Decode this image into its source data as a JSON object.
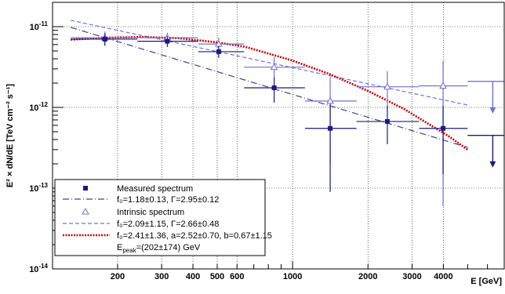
{
  "chart_data": {
    "type": "scatter",
    "xscale": "log",
    "yscale": "log",
    "xlim": [
      110,
      7000
    ],
    "ylim": [
      1e-14,
      2e-11
    ],
    "grid": true,
    "xlabel": "E [GeV]",
    "ylabel": "E² × dN/dE [TeV cm⁻² s⁻¹]",
    "legend_position": "bottom-left",
    "x_ticks": [
      {
        "value": 200,
        "label": "200"
      },
      {
        "value": 300,
        "label": "300"
      },
      {
        "value": 400,
        "label": "400"
      },
      {
        "value": 500,
        "label": "500"
      },
      {
        "value": 600,
        "label": "600"
      },
      {
        "value": 1000,
        "label": "1000"
      },
      {
        "value": 2000,
        "label": "2000"
      },
      {
        "value": 3000,
        "label": "3000"
      },
      {
        "value": 4000,
        "label": "4000"
      }
    ],
    "y_ticks": [
      {
        "value": 1e-14,
        "base": "10",
        "exp": "-14"
      },
      {
        "value": 1e-13,
        "base": "10",
        "exp": "-13"
      },
      {
        "value": 1e-12,
        "base": "10",
        "exp": "-12"
      },
      {
        "value": 1e-11,
        "base": "10",
        "exp": "-11"
      }
    ],
    "colors": {
      "measured": "#1a1a80",
      "intrinsic": "#7070d8",
      "fit_measured": "#404090",
      "fit_intrinsic": "#7070e0",
      "fit_logparabola": "#cc0000"
    },
    "measured": [
      {
        "x": 178,
        "y": 7e-12,
        "xerr": [
          130,
          240
        ],
        "yerr": [
          5.8e-12,
          8.3e-12
        ]
      },
      {
        "x": 316,
        "y": 6.6e-12,
        "xerr": [
          240,
          420
        ],
        "yerr": [
          5.6e-12,
          7.6e-12
        ]
      },
      {
        "x": 507,
        "y": 4.9e-12,
        "xerr": [
          420,
          640
        ],
        "yerr": [
          4.1e-12,
          5.8e-12
        ]
      },
      {
        "x": 844,
        "y": 1.75e-12,
        "xerr": [
          640,
          1120
        ],
        "yerr": [
          1.15e-12,
          2.35e-12
        ]
      },
      {
        "x": 1413,
        "y": 5.5e-13,
        "xerr": [
          1120,
          1800
        ],
        "yerr": [
          9e-14,
          1.1e-12
        ]
      },
      {
        "x": 2390,
        "y": 6.7e-13,
        "xerr": [
          1800,
          3200
        ],
        "yerr": [
          3.5e-13,
          1.05e-12
        ]
      },
      {
        "x": 3990,
        "y": 5.5e-13,
        "xerr": [
          3200,
          5000
        ],
        "yerr": [
          1.5e-13,
          1.05e-12
        ]
      }
    ],
    "intrinsic": [
      {
        "x": 178,
        "y": 7.3e-12,
        "xerr": [
          130,
          240
        ],
        "yerr": [
          6e-12,
          8.7e-12
        ]
      },
      {
        "x": 316,
        "y": 7.3e-12,
        "xerr": [
          240,
          420
        ],
        "yerr": [
          6.1e-12,
          8.4e-12
        ]
      },
      {
        "x": 507,
        "y": 6.1e-12,
        "xerr": [
          420,
          640
        ],
        "yerr": [
          5e-12,
          7.3e-12
        ]
      },
      {
        "x": 844,
        "y": 3.15e-12,
        "xerr": [
          640,
          1120
        ],
        "yerr": [
          2.1e-12,
          4.2e-12
        ]
      },
      {
        "x": 1413,
        "y": 1.2e-12,
        "xerr": [
          1120,
          1800
        ],
        "yerr": [
          2e-13,
          2.4e-12
        ]
      },
      {
        "x": 2390,
        "y": 1.8e-12,
        "xerr": [
          1800,
          3200
        ],
        "yerr": [
          9.5e-13,
          2.8e-12
        ]
      },
      {
        "x": 3990,
        "y": 1.85e-12,
        "xerr": [
          3200,
          5000
        ],
        "yerr": [
          6e-14,
          3.8e-12
        ]
      }
    ],
    "upper_limits": [
      {
        "x": 6300,
        "y": 2.1e-12,
        "xerr": [
          5000,
          7000
        ],
        "series": "intrinsic"
      },
      {
        "x": 6300,
        "y": 4.5e-13,
        "xerr": [
          5000,
          7000
        ],
        "series": "measured"
      }
    ],
    "fits": [
      {
        "name": "measured_powerlaw",
        "x": [
          130,
          5000
        ],
        "y": [
          9.8e-12,
          3.2e-13
        ]
      },
      {
        "name": "intrinsic_powerlaw",
        "x": [
          130,
          5000
        ],
        "y": [
          1.2e-11,
          1.07e-12
        ]
      },
      {
        "name": "intrinsic_logparabola",
        "x": [
          130,
          180,
          250,
          350,
          500,
          650,
          850,
          1000,
          1400,
          2000,
          2800,
          3500,
          4200,
          5000
        ],
        "y": [
          6.9e-12,
          7.3e-12,
          7.45e-12,
          7.2e-12,
          6.4e-12,
          5.6e-12,
          4.4e-12,
          3.8e-12,
          2.6e-12,
          1.6e-12,
          9.5e-13,
          6.2e-13,
          4.4e-13,
          3e-13
        ]
      }
    ]
  },
  "legend": [
    {
      "key": "measured",
      "text": "Measured spectrum"
    },
    {
      "key": "fit_measured",
      "text": "f₀=1.18±0.13, Γ=2.95±0.12"
    },
    {
      "key": "intrinsic",
      "text": "Intrinsic spectrum"
    },
    {
      "key": "fit_intrinsic",
      "text": "f₀=2.09±1.15, Γ=2.66±0.48"
    },
    {
      "key": "fit_logparabola",
      "text": "f₀=2.41±1.36, a=2.52±0.70, b=0.67±1.15"
    },
    {
      "key": "epeak",
      "text": "E",
      "sub": "peak",
      "rest": "=(202±174) GeV"
    }
  ]
}
